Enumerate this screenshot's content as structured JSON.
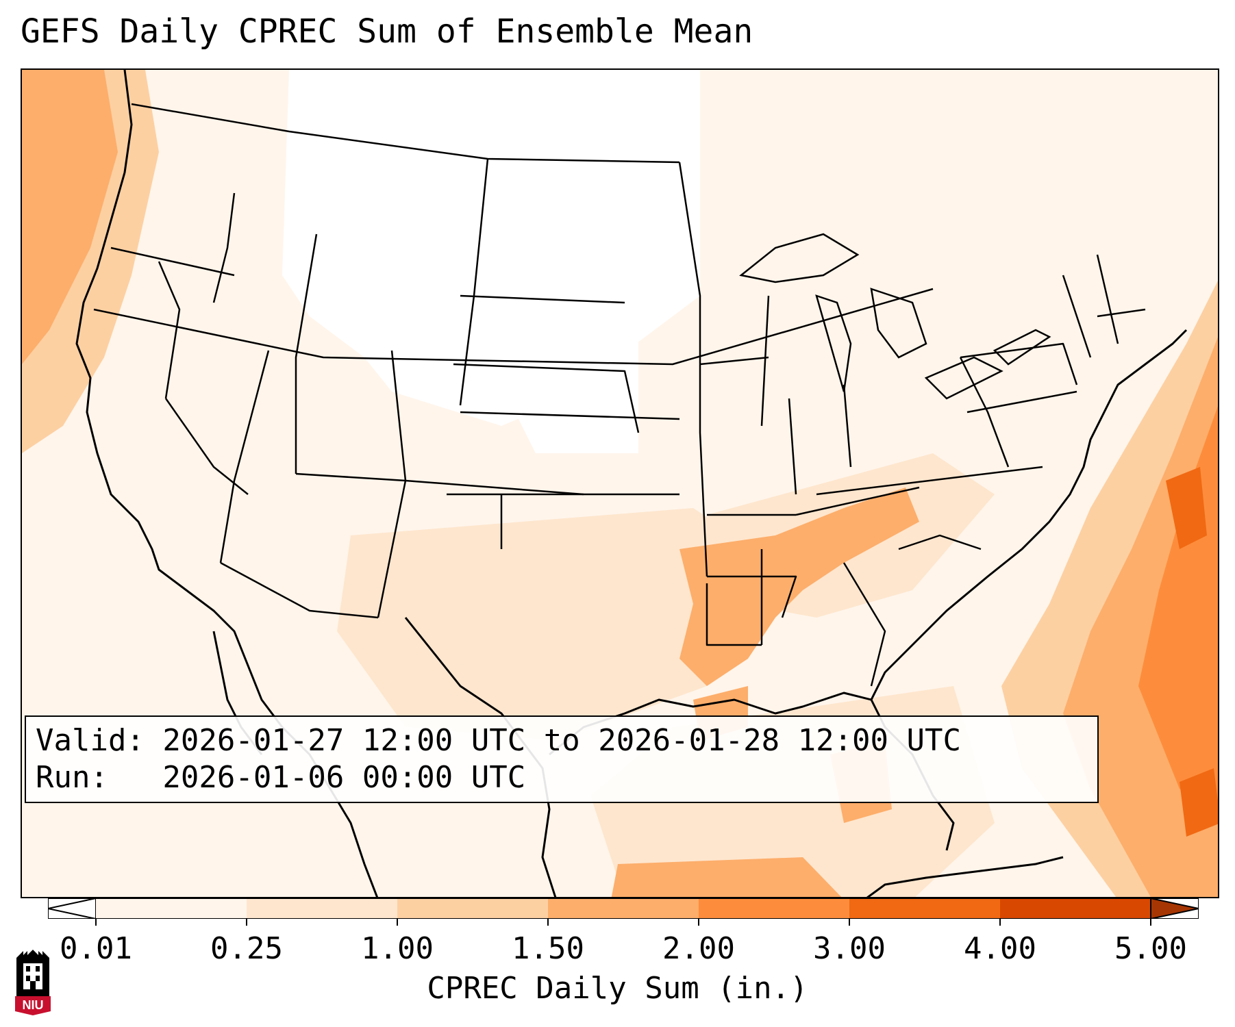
{
  "title": "GEFS Daily CPREC Sum of Ensemble Mean",
  "info": {
    "valid_line": "Valid: 2026-01-27 12:00 UTC to 2026-01-28 12:00 UTC",
    "run_line": "Run:   2026-01-06 00:00 UTC"
  },
  "colorbar": {
    "label": "CPREC Daily Sum (in.)",
    "ticks": [
      "0.01",
      "0.25",
      "1.00",
      "1.50",
      "2.00",
      "3.00",
      "4.00",
      "5.00"
    ],
    "colors": [
      "#fff5eb",
      "#fee6ce",
      "#fdd0a2",
      "#fdae6b",
      "#fd8d3c",
      "#f16913",
      "#d94801"
    ],
    "under_color": "#ffffff",
    "over_color": "#a63603",
    "extend": "both"
  },
  "logo": {
    "text": "NIU",
    "colors": {
      "seal": "#000000",
      "banner": "#c8102e"
    }
  },
  "map": {
    "projection": "Lambert conformal (CONUS)",
    "features": [
      "state-borders",
      "country-borders",
      "coastlines",
      "precipitation-field"
    ]
  }
}
